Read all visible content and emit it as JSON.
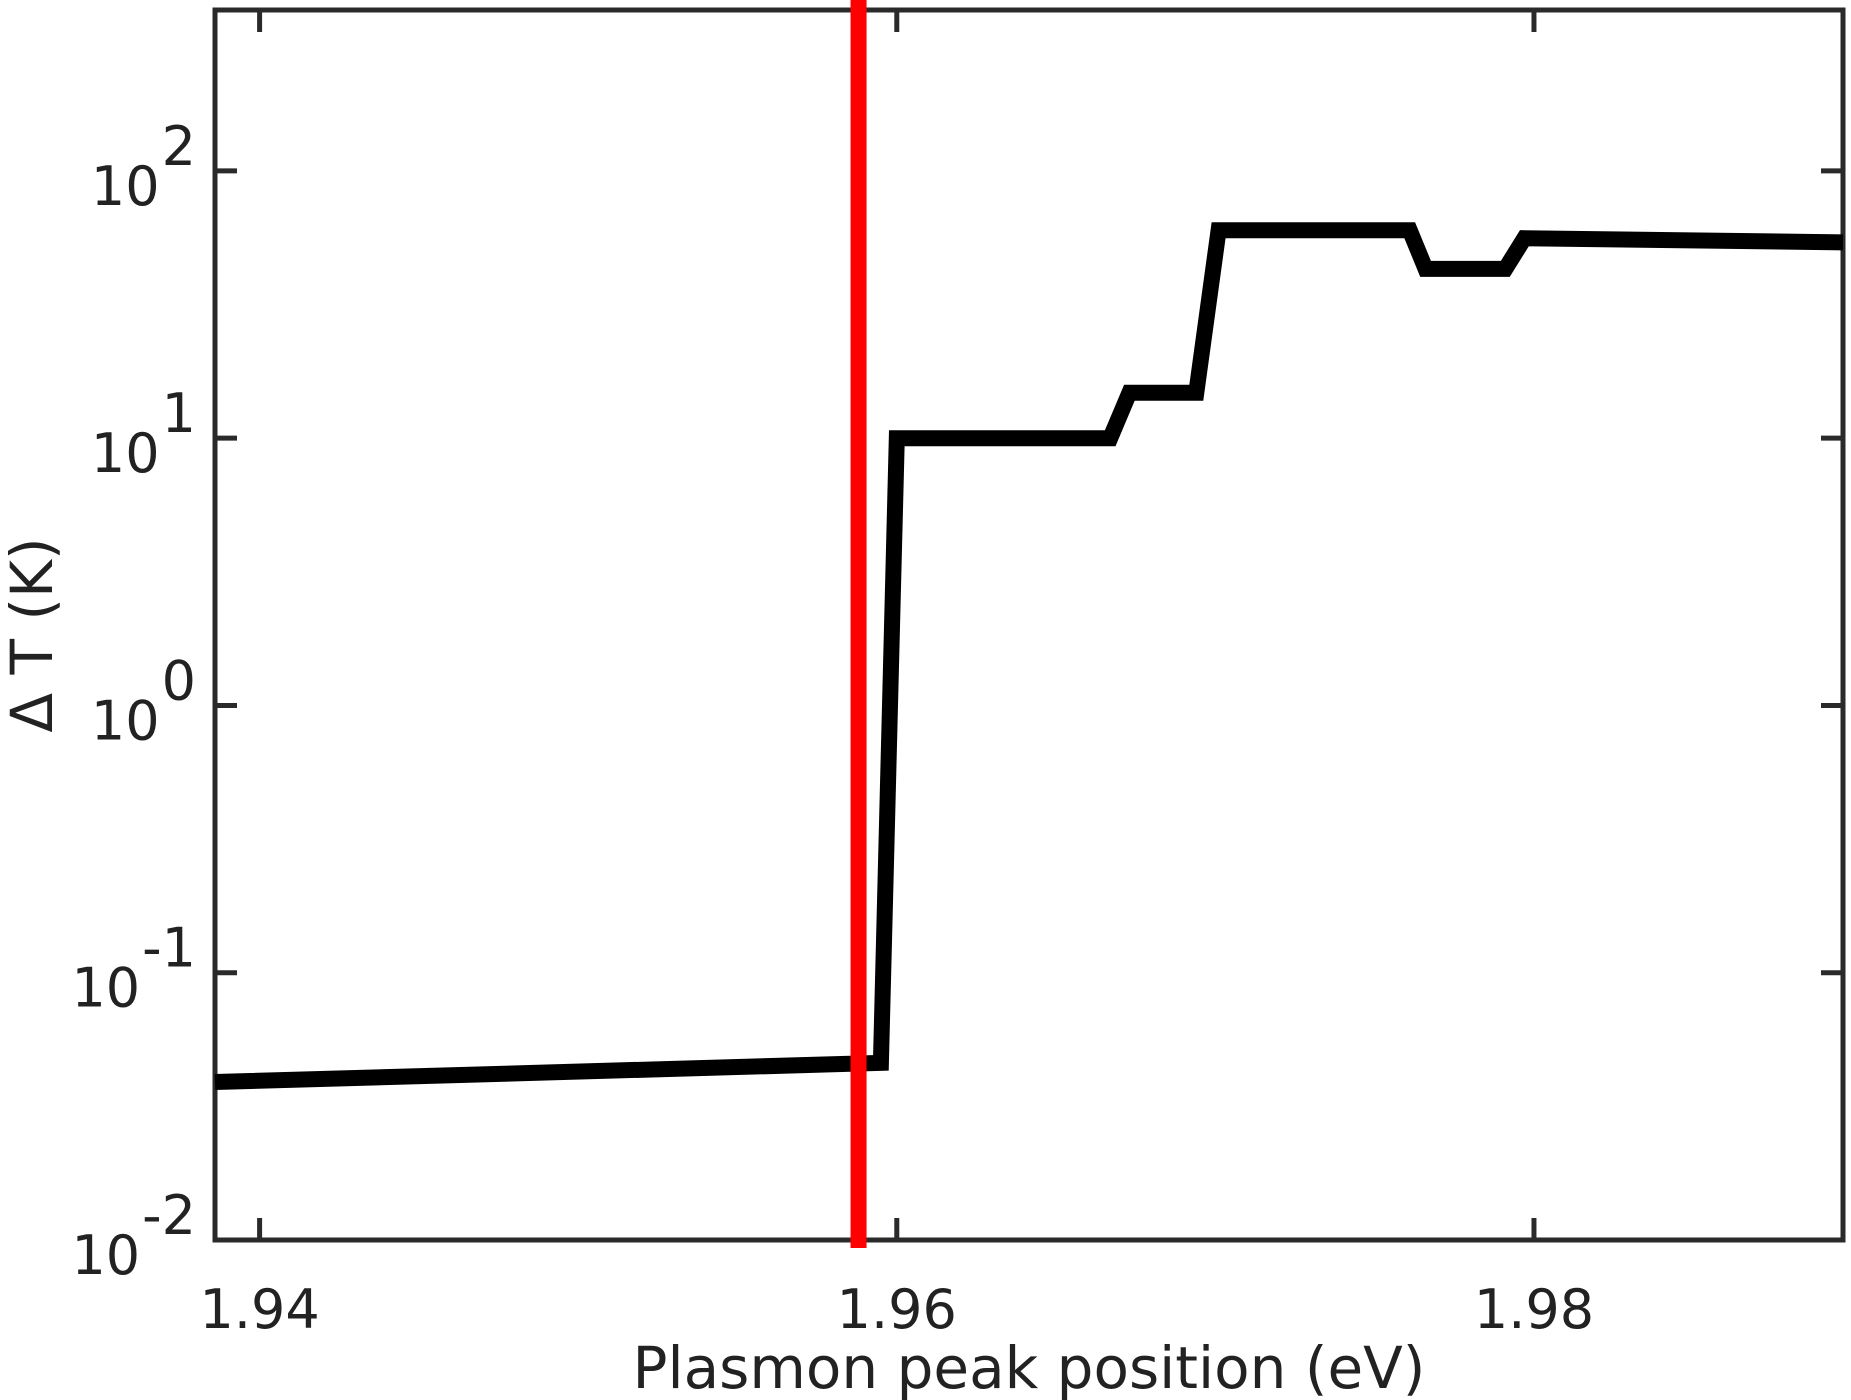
{
  "chart_data": {
    "type": "line",
    "title": "",
    "xlabel": "Plasmon peak position (eV)",
    "ylabel": "Δ T (K)",
    "xlim": [
      1.9386,
      1.9897
    ],
    "ylim": [
      0.01,
      400
    ],
    "yscale": "log",
    "grid": false,
    "xticks": [
      {
        "value": 1.94,
        "label": "1.94"
      },
      {
        "value": 1.96,
        "label": "1.96"
      },
      {
        "value": 1.98,
        "label": "1.98"
      }
    ],
    "yticks": [
      {
        "value": 0.01,
        "base": "10",
        "exp": "-2"
      },
      {
        "value": 0.1,
        "base": "10",
        "exp": "-1"
      },
      {
        "value": 1,
        "base": "10",
        "exp": "0"
      },
      {
        "value": 10,
        "base": "10",
        "exp": "1"
      },
      {
        "value": 100,
        "base": "10",
        "exp": "2"
      }
    ],
    "series": [
      {
        "color": "#000000",
        "points": [
          [
            1.9386,
            0.039
          ],
          [
            1.9595,
            0.046
          ],
          [
            1.96,
            10.0
          ],
          [
            1.9667,
            10.0
          ],
          [
            1.9673,
            14.8
          ],
          [
            1.9694,
            14.8
          ],
          [
            1.9701,
            60.0
          ],
          [
            1.9761,
            60.0
          ],
          [
            1.9766,
            43.0
          ],
          [
            1.9791,
            43.0
          ],
          [
            1.9797,
            56.0
          ],
          [
            1.9897,
            54.0
          ]
        ]
      }
    ],
    "reference_line": {
      "x": 1.9588,
      "color": "#ff0000"
    }
  }
}
